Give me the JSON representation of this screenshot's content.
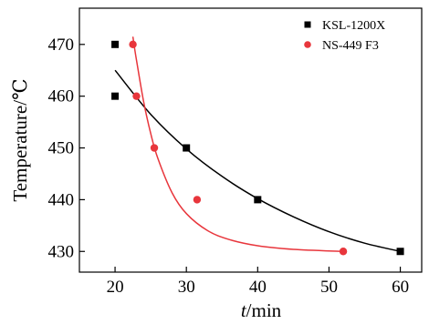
{
  "chart_data": {
    "type": "scatter",
    "title": "",
    "xlabel_var": "t",
    "xlabel_unit": "/min",
    "ylabel": "Temperature/℃",
    "xlim": [
      15,
      63
    ],
    "ylim": [
      426,
      477
    ],
    "xticks": [
      20,
      30,
      40,
      50,
      60
    ],
    "yticks": [
      430,
      440,
      450,
      460,
      470
    ],
    "grid": false,
    "legend_position": "top-right",
    "series": [
      {
        "name": "KSL-1200X",
        "color": "#000000",
        "marker": "square",
        "points": [
          {
            "x": 20,
            "y": 470
          },
          {
            "x": 20,
            "y": 460
          },
          {
            "x": 30,
            "y": 450
          },
          {
            "x": 40,
            "y": 440
          },
          {
            "x": 60,
            "y": 430
          }
        ],
        "fit": [
          [
            20,
            465
          ],
          [
            25,
            456.5
          ],
          [
            30,
            449.8
          ],
          [
            35,
            444.5
          ],
          [
            40,
            440.2
          ],
          [
            45,
            436.7
          ],
          [
            50,
            433.8
          ],
          [
            55,
            431.6
          ],
          [
            60,
            430
          ]
        ]
      },
      {
        "name": "NS-449 F3",
        "color": "#e8363c",
        "marker": "circle",
        "points": [
          {
            "x": 22.5,
            "y": 470
          },
          {
            "x": 23,
            "y": 460
          },
          {
            "x": 25.5,
            "y": 450
          },
          {
            "x": 31.5,
            "y": 440
          },
          {
            "x": 52,
            "y": 430
          }
        ],
        "fit": [
          [
            22.5,
            471.5
          ],
          [
            23,
            467
          ],
          [
            24,
            459
          ],
          [
            25,
            452.8
          ],
          [
            26,
            448
          ],
          [
            28,
            441.3
          ],
          [
            30,
            437.3
          ],
          [
            33,
            434
          ],
          [
            36,
            432.3
          ],
          [
            40,
            431.1
          ],
          [
            45,
            430.4
          ],
          [
            52,
            430
          ]
        ]
      }
    ]
  }
}
